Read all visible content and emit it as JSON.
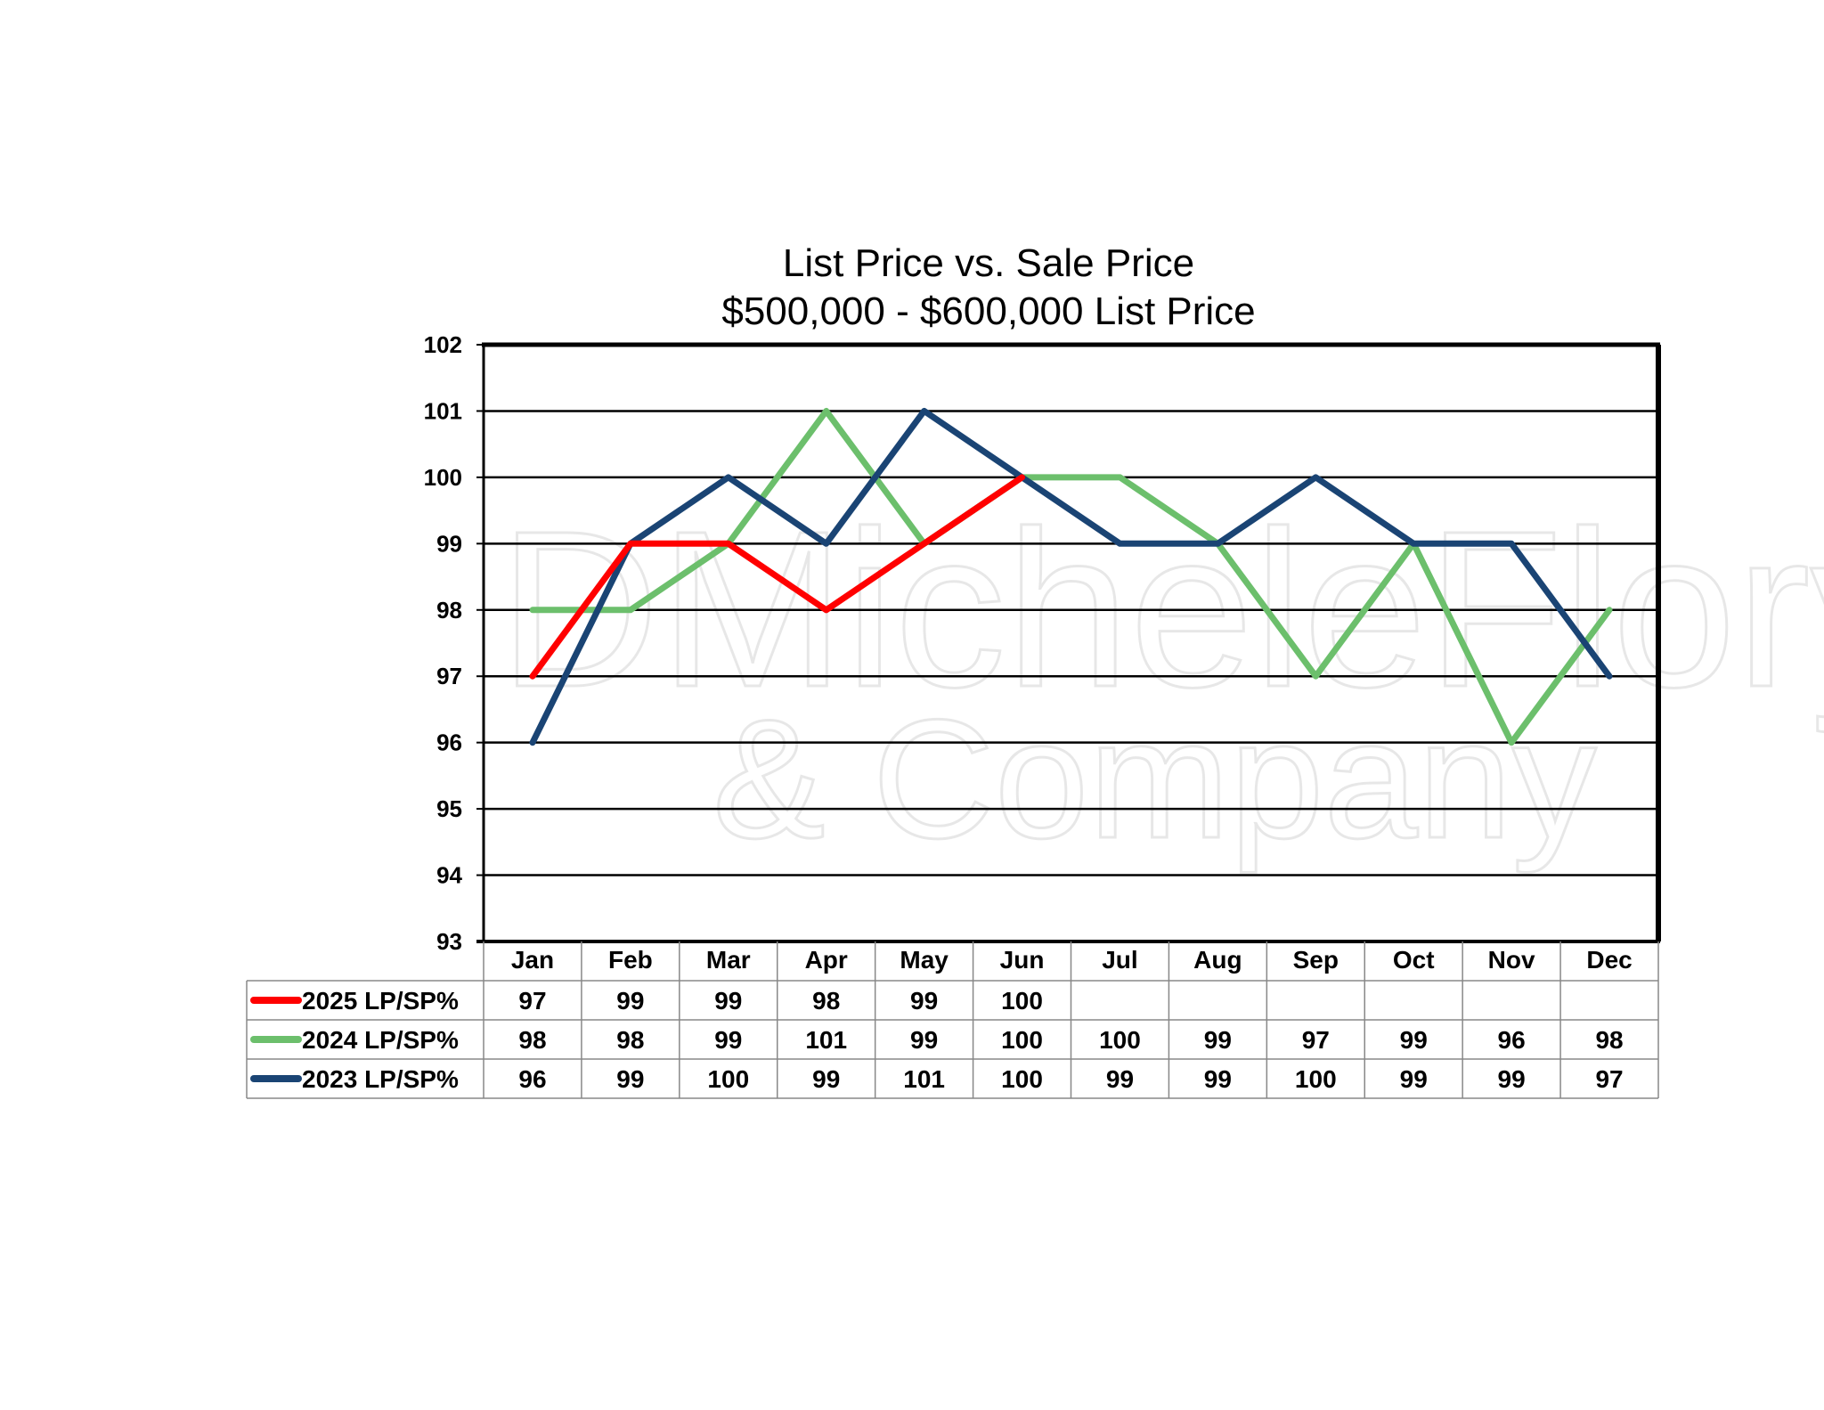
{
  "chart_data": {
    "type": "line",
    "title": "List Price vs. Sale Price",
    "subtitle": "$500,000 - $600,000  List Price",
    "categories": [
      "Jan",
      "Feb",
      "Mar",
      "Apr",
      "May",
      "Jun",
      "Jul",
      "Aug",
      "Sep",
      "Oct",
      "Nov",
      "Dec"
    ],
    "ylim": [
      93,
      102
    ],
    "yticks": [
      93,
      94,
      95,
      96,
      97,
      98,
      99,
      100,
      101,
      102
    ],
    "grid": true,
    "legend": "data-table-below",
    "series": [
      {
        "name": "2025 LP/SP%",
        "color": "#ff0000",
        "values": [
          97,
          99,
          99,
          98,
          99,
          100,
          null,
          null,
          null,
          null,
          null,
          null
        ]
      },
      {
        "name": "2024 LP/SP%",
        "color": "#6cbf6c",
        "values": [
          98,
          98,
          99,
          101,
          99,
          100,
          100,
          99,
          97,
          99,
          96,
          98
        ]
      },
      {
        "name": "2023 LP/SP%",
        "color": "#1a4474",
        "values": [
          96,
          99,
          100,
          99,
          101,
          100,
          99,
          99,
          100,
          99,
          99,
          97
        ]
      }
    ],
    "watermark": "Michele Flory & Company"
  }
}
